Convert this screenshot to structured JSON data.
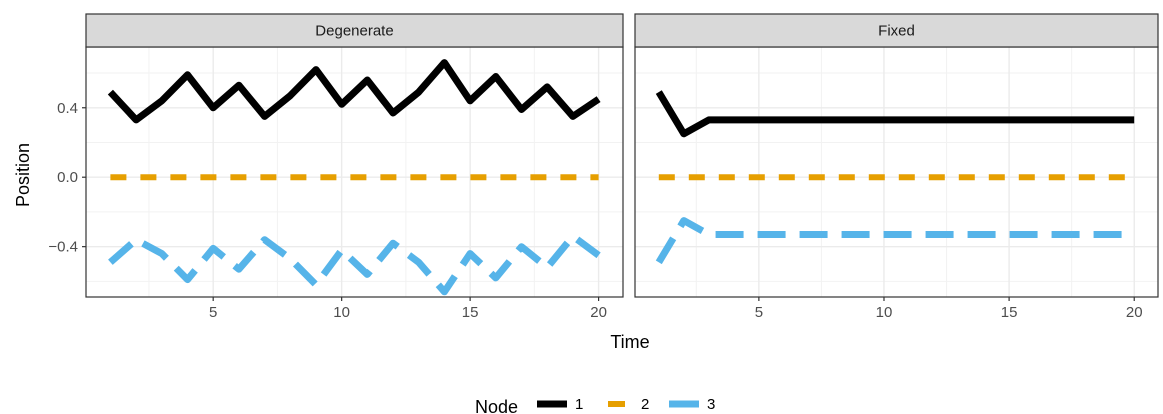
{
  "chart_data": {
    "type": "line",
    "xlabel": "Time",
    "ylabel": "Position",
    "xlim": [
      0.05,
      20.95
    ],
    "ylim": [
      -0.69,
      0.75
    ],
    "x_ticks": [
      5,
      10,
      15,
      20
    ],
    "y_ticks": [
      0.4,
      0.0,
      -0.4
    ],
    "y_tick_labels": [
      "0.4",
      "0.0",
      "−0.4"
    ],
    "grid": true,
    "legend": {
      "title": "Node",
      "position": "bottom",
      "entries": [
        "1",
        "2",
        "3"
      ]
    },
    "colors": {
      "1": "#000000",
      "2": "#E69F00",
      "3": "#56B4E9"
    },
    "panels": [
      {
        "strip": "Degenerate",
        "series": [
          {
            "name": "1",
            "x": [
              1,
              2,
              3,
              4,
              5,
              6,
              7,
              8,
              9,
              10,
              11,
              12,
              13,
              14,
              15,
              16,
              17,
              18,
              19,
              20
            ],
            "y": [
              0.49,
              0.33,
              0.44,
              0.59,
              0.4,
              0.53,
              0.35,
              0.47,
              0.62,
              0.42,
              0.56,
              0.37,
              0.49,
              0.66,
              0.44,
              0.58,
              0.39,
              0.52,
              0.35,
              0.45
            ]
          },
          {
            "name": "2",
            "x": [
              1,
              2,
              3,
              4,
              5,
              6,
              7,
              8,
              9,
              10,
              11,
              12,
              13,
              14,
              15,
              16,
              17,
              18,
              19,
              20
            ],
            "y": [
              0,
              0,
              0,
              0,
              0,
              0,
              0,
              0,
              0,
              0,
              0,
              0,
              0,
              0,
              0,
              0,
              0,
              0,
              0,
              0
            ]
          },
          {
            "name": "3",
            "x": [
              1,
              2,
              3,
              4,
              5,
              6,
              7,
              8,
              9,
              10,
              11,
              12,
              13,
              14,
              15,
              16,
              17,
              18,
              19,
              20
            ],
            "y": [
              -0.49,
              -0.36,
              -0.44,
              -0.59,
              -0.41,
              -0.53,
              -0.36,
              -0.47,
              -0.62,
              -0.42,
              -0.56,
              -0.38,
              -0.49,
              -0.66,
              -0.44,
              -0.58,
              -0.4,
              -0.52,
              -0.34,
              -0.45
            ]
          }
        ]
      },
      {
        "strip": "Fixed",
        "series": [
          {
            "name": "1",
            "x": [
              1,
              2,
              3,
              4,
              5,
              6,
              7,
              8,
              9,
              10,
              11,
              12,
              13,
              14,
              15,
              16,
              17,
              18,
              19,
              20
            ],
            "y": [
              0.49,
              0.25,
              0.33,
              0.33,
              0.33,
              0.33,
              0.33,
              0.33,
              0.33,
              0.33,
              0.33,
              0.33,
              0.33,
              0.33,
              0.33,
              0.33,
              0.33,
              0.33,
              0.33,
              0.33
            ]
          },
          {
            "name": "2",
            "x": [
              1,
              2,
              3,
              4,
              5,
              6,
              7,
              8,
              9,
              10,
              11,
              12,
              13,
              14,
              15,
              16,
              17,
              18,
              19,
              20
            ],
            "y": [
              0,
              0,
              0,
              0,
              0,
              0,
              0,
              0,
              0,
              0,
              0,
              0,
              0,
              0,
              0,
              0,
              0,
              0,
              0,
              0
            ]
          },
          {
            "name": "3",
            "x": [
              1,
              2,
              3,
              4,
              5,
              6,
              7,
              8,
              9,
              10,
              11,
              12,
              13,
              14,
              15,
              16,
              17,
              18,
              19,
              20
            ],
            "y": [
              -0.49,
              -0.25,
              -0.33,
              -0.33,
              -0.33,
              -0.33,
              -0.33,
              -0.33,
              -0.33,
              -0.33,
              -0.33,
              -0.33,
              -0.33,
              -0.33,
              -0.33,
              -0.33,
              -0.33,
              -0.33,
              -0.33,
              -0.33
            ]
          }
        ]
      }
    ]
  }
}
